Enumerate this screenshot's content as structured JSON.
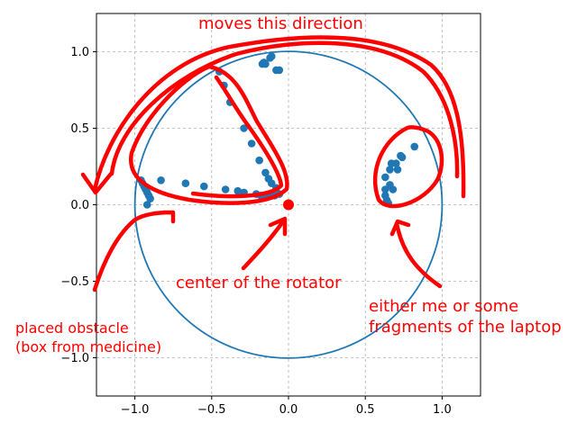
{
  "chart_data": {
    "type": "scatter",
    "title": "",
    "xlabel": "",
    "ylabel": "",
    "xlim": [
      -1.25,
      1.25
    ],
    "ylim": [
      -1.25,
      1.25
    ],
    "grid": true,
    "aspect": "equal",
    "xticks": [
      -1.0,
      -0.5,
      0.0,
      0.5,
      1.0
    ],
    "yticks": [
      -1.0,
      -0.5,
      0.0,
      0.5,
      1.0
    ],
    "xtick_labels": [
      "−1.0",
      "−0.5",
      "0.0",
      "0.5",
      "1.0"
    ],
    "ytick_labels": [
      "−1.0",
      "−0.5",
      "0.0",
      "0.5",
      "1.0"
    ],
    "unit_circle": {
      "center": [
        0,
        0
      ],
      "radius": 1.0,
      "color": "#1f77b4"
    },
    "center_point": {
      "x": 0.0,
      "y": 0.0,
      "color": "#ff0000"
    },
    "series": [
      {
        "color": "#1f77b4",
        "points": [
          [
            -0.96,
            0.16
          ],
          [
            -0.95,
            0.14
          ],
          [
            -0.94,
            0.12
          ],
          [
            -0.93,
            0.1
          ],
          [
            -0.92,
            0.08
          ],
          [
            -0.91,
            0.06
          ],
          [
            -0.9,
            0.04
          ],
          [
            -0.92,
            0.0
          ],
          [
            -0.83,
            0.16
          ],
          [
            -0.67,
            0.14
          ],
          [
            -0.55,
            0.12
          ],
          [
            -0.41,
            0.1
          ],
          [
            -0.33,
            0.09
          ],
          [
            -0.29,
            0.08
          ],
          [
            -0.21,
            0.07
          ],
          [
            -0.18,
            0.06
          ],
          [
            -0.15,
            0.06
          ],
          [
            -0.12,
            0.06
          ],
          [
            -0.09,
            0.06
          ],
          [
            -0.06,
            0.07
          ],
          [
            -0.08,
            0.11
          ],
          [
            -0.11,
            0.14
          ],
          [
            -0.13,
            0.17
          ],
          [
            -0.15,
            0.21
          ],
          [
            -0.19,
            0.29
          ],
          [
            -0.24,
            0.4
          ],
          [
            -0.29,
            0.5
          ],
          [
            -0.38,
            0.67
          ],
          [
            -0.42,
            0.78
          ],
          [
            -0.45,
            0.87
          ],
          [
            -0.17,
            0.92
          ],
          [
            -0.16,
            0.93
          ],
          [
            -0.15,
            0.92
          ],
          [
            -0.12,
            0.96
          ],
          [
            -0.11,
            0.97
          ],
          [
            -0.08,
            0.88
          ],
          [
            -0.06,
            0.88
          ],
          [
            0.63,
            0.18
          ],
          [
            0.63,
            0.1
          ],
          [
            0.63,
            0.06
          ],
          [
            0.64,
            0.03
          ],
          [
            0.65,
            0.01
          ],
          [
            0.66,
            0.13
          ],
          [
            0.66,
            0.23
          ],
          [
            0.67,
            0.27
          ],
          [
            0.68,
            0.1
          ],
          [
            0.7,
            0.27
          ],
          [
            0.71,
            0.23
          ],
          [
            0.73,
            0.32
          ],
          [
            0.74,
            0.31
          ],
          [
            0.82,
            0.38
          ]
        ]
      }
    ],
    "annotations": [
      {
        "id": "direction",
        "text": "moves this direction"
      },
      {
        "id": "rotator",
        "text": "center of the rotator"
      },
      {
        "id": "me",
        "text": "either me or some",
        "text2": "fragments of the laptop"
      },
      {
        "id": "obstacle",
        "text": "placed obstacle",
        "text2": "(box from medicine)"
      }
    ],
    "annotation_color": "#ff0000"
  }
}
